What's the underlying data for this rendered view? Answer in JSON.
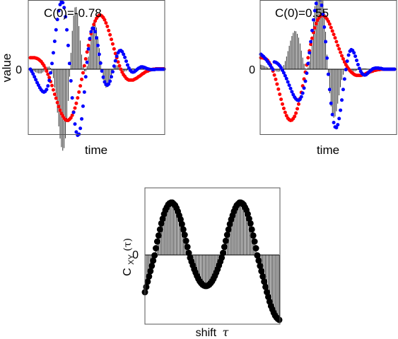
{
  "colors": {
    "series_x": "#ff0000",
    "series_y": "#0000ff",
    "correlation": "#000000"
  },
  "chart_data": [
    {
      "type": "scatter",
      "annotation": "C(0)=-0.78",
      "xlabel": "time",
      "ylabel": "value",
      "ytick_labels": [
        "0"
      ],
      "n_samples": 100,
      "ylim": [
        -1.8,
        1.8
      ],
      "series": [
        {
          "values": [
            0.3,
            0.3,
            0.3,
            0.3,
            0.29,
            0.28,
            0.26,
            0.23,
            0.2,
            0.15,
            0.1,
            0.03,
            -0.05,
            -0.14,
            -0.23,
            -0.34,
            -0.45,
            -0.57,
            -0.69,
            -0.8,
            -0.92,
            -1.03,
            -1.13,
            -1.22,
            -1.29,
            -1.35,
            -1.39,
            -1.41,
            -1.41,
            -1.38,
            -1.34,
            -1.27,
            -1.18,
            -1.07,
            -0.94,
            -0.79,
            -0.63,
            -0.46,
            -0.28,
            -0.1,
            0.09,
            0.27,
            0.45,
            0.62,
            0.78,
            0.93,
            1.06,
            1.17,
            1.26,
            1.33,
            1.38,
            1.41,
            1.41,
            1.39,
            1.35,
            1.29,
            1.21,
            1.12,
            1.01,
            0.9,
            0.78,
            0.66,
            0.53,
            0.41,
            0.3,
            0.19,
            0.09,
            -0.0,
            -0.08,
            -0.15,
            -0.2,
            -0.25,
            -0.28,
            -0.3,
            -0.3,
            -0.3,
            -0.3,
            -0.28,
            -0.26,
            -0.24,
            -0.21,
            -0.19,
            -0.16,
            -0.13,
            -0.11,
            -0.08,
            -0.06,
            -0.05,
            -0.03,
            -0.02,
            -0.01,
            -0.0,
            0.0,
            0.01,
            0.01,
            0.01,
            0.01,
            0.01,
            0.01,
            0.01
          ]
        },
        {
          "values": [
            -0.0,
            -0.06,
            -0.13,
            -0.21,
            -0.29,
            -0.37,
            -0.44,
            -0.51,
            -0.57,
            -0.61,
            -0.63,
            -0.61,
            -0.56,
            -0.46,
            -0.31,
            -0.1,
            0.15,
            0.43,
            0.73,
            1.03,
            1.3,
            1.53,
            1.69,
            1.76,
            1.74,
            1.61,
            1.37,
            1.03,
            0.62,
            0.15,
            -0.32,
            -0.79,
            -1.19,
            -1.51,
            -1.73,
            -1.82,
            -1.79,
            -1.63,
            -1.37,
            -1.02,
            -0.63,
            -0.21,
            0.18,
            0.53,
            0.8,
            0.98,
            1.07,
            1.06,
            0.98,
            0.82,
            0.62,
            0.39,
            0.16,
            -0.05,
            -0.22,
            -0.35,
            -0.42,
            -0.44,
            -0.41,
            -0.33,
            -0.21,
            -0.07,
            0.08,
            0.22,
            0.34,
            0.43,
            0.48,
            0.49,
            0.46,
            0.39,
            0.31,
            0.21,
            0.11,
            0.03,
            -0.03,
            -0.07,
            -0.08,
            -0.07,
            -0.04,
            -0.01,
            0.02,
            0.04,
            0.06,
            0.06,
            0.05,
            0.04,
            0.02,
            0.01,
            -0.0,
            -0.01,
            -0.01,
            -0.01,
            -0.01,
            -0.0,
            0.0,
            0.0,
            0.0,
            0.0,
            0.0,
            0.0
          ]
        }
      ]
    },
    {
      "type": "scatter",
      "annotation": "C(0)=0.55",
      "xlabel": "time",
      "ylabel": "",
      "ytick_labels": [
        "0"
      ],
      "n_samples": 100,
      "ylim": [
        -1.8,
        1.8
      ],
      "series": [
        {
          "values": [
            0.3,
            0.3,
            0.29,
            0.28,
            0.26,
            0.23,
            0.18,
            0.12,
            0.04,
            -0.05,
            -0.16,
            -0.28,
            -0.41,
            -0.55,
            -0.69,
            -0.83,
            -0.96,
            -1.08,
            -1.19,
            -1.28,
            -1.35,
            -1.39,
            -1.41,
            -1.4,
            -1.36,
            -1.3,
            -1.21,
            -1.09,
            -0.96,
            -0.81,
            -0.64,
            -0.46,
            -0.27,
            -0.08,
            0.11,
            0.3,
            0.48,
            0.65,
            0.81,
            0.96,
            1.08,
            1.19,
            1.28,
            1.34,
            1.38,
            1.41,
            1.41,
            1.39,
            1.36,
            1.31,
            1.25,
            1.18,
            1.09,
            1.0,
            0.91,
            0.82,
            0.72,
            0.62,
            0.53,
            0.44,
            0.35,
            0.27,
            0.19,
            0.12,
            0.06,
            0.01,
            -0.04,
            -0.08,
            -0.11,
            -0.14,
            -0.16,
            -0.17,
            -0.17,
            -0.17,
            -0.17,
            -0.16,
            -0.15,
            -0.14,
            -0.12,
            -0.1,
            -0.09,
            -0.07,
            -0.06,
            -0.05,
            -0.03,
            -0.03,
            -0.02,
            -0.01,
            -0.01,
            -0.0,
            -0.0,
            0.0,
            0.0,
            0.0,
            0.0,
            0.0,
            0.0,
            0.0,
            0.0,
            0.0
          ]
        },
        {
          "values": [
            0.39,
            0.36,
            0.33,
            0.29,
            0.25,
            0.2,
            0.15,
            0.1,
            0.04,
            -0.01,
            0.19,
            0.18,
            0.16,
            0.13,
            0.09,
            0.04,
            -0.03,
            -0.1,
            -0.18,
            -0.26,
            -0.35,
            -0.44,
            -0.53,
            -0.62,
            -0.7,
            -0.77,
            -0.82,
            -0.85,
            -0.86,
            -0.83,
            -0.76,
            -0.66,
            -0.52,
            -0.33,
            -0.11,
            0.15,
            0.43,
            0.72,
            1.01,
            1.29,
            1.53,
            1.72,
            1.84,
            1.88,
            1.82,
            1.67,
            1.43,
            1.1,
            0.72,
            0.29,
            -0.14,
            -0.56,
            -0.94,
            -1.25,
            -1.47,
            -1.59,
            -1.61,
            -1.53,
            -1.36,
            -1.13,
            -0.85,
            -0.56,
            -0.27,
            -0.01,
            0.21,
            0.37,
            0.47,
            0.51,
            0.49,
            0.43,
            0.34,
            0.23,
            0.12,
            0.02,
            -0.06,
            -0.12,
            -0.15,
            -0.16,
            -0.15,
            -0.12,
            -0.08,
            -0.05,
            -0.02,
            0.01,
            0.02,
            0.03,
            0.03,
            0.03,
            0.02,
            0.02,
            0.01,
            0.0,
            -0.0,
            -0.0,
            -0.0,
            -0.0,
            -0.0,
            -0.0,
            0.0,
            0.0
          ]
        }
      ]
    },
    {
      "type": "scatter",
      "xlabel": "shift",
      "xlabel_symbol": "τ",
      "ylabel": "C",
      "ylabel_sub": "XY",
      "ylabel_arg": "(τ)",
      "ytick_labels": [
        "0"
      ],
      "ylim": [
        -1.45,
        1.0
      ],
      "series": [
        {
          "values": [
            -0.78,
            -0.67,
            -0.56,
            -0.45,
            -0.34,
            -0.23,
            -0.12,
            -0.01,
            0.1,
            0.2,
            0.29,
            0.38,
            0.47,
            0.54,
            0.61,
            0.67,
            0.71,
            0.75,
            0.77,
            0.78,
            0.78,
            0.76,
            0.74,
            0.7,
            0.65,
            0.59,
            0.53,
            0.46,
            0.38,
            0.3,
            0.21,
            0.12,
            0.03,
            -0.06,
            -0.14,
            -0.22,
            -0.3,
            -0.37,
            -0.44,
            -0.5,
            -0.55,
            -0.59,
            -0.62,
            -0.64,
            -0.65,
            -0.65,
            -0.64,
            -0.62,
            -0.59,
            -0.55,
            -0.5,
            -0.44,
            -0.37,
            -0.3,
            -0.22,
            -0.14,
            -0.06,
            0.03,
            0.12,
            0.21,
            0.3,
            0.38,
            0.46,
            0.53,
            0.59,
            0.65,
            0.7,
            0.74,
            0.76,
            0.78,
            0.78,
            0.77,
            0.75,
            0.71,
            0.67,
            0.61,
            0.54,
            0.47,
            0.38,
            0.29,
            0.2,
            0.1,
            -0.01,
            -0.12,
            -0.23,
            -0.34,
            -0.45,
            -0.56,
            -0.67,
            -0.78,
            -0.88,
            -0.98,
            -1.07,
            -1.14,
            -1.21,
            -1.27,
            -1.31,
            -1.34,
            -1.36
          ]
        }
      ]
    }
  ]
}
